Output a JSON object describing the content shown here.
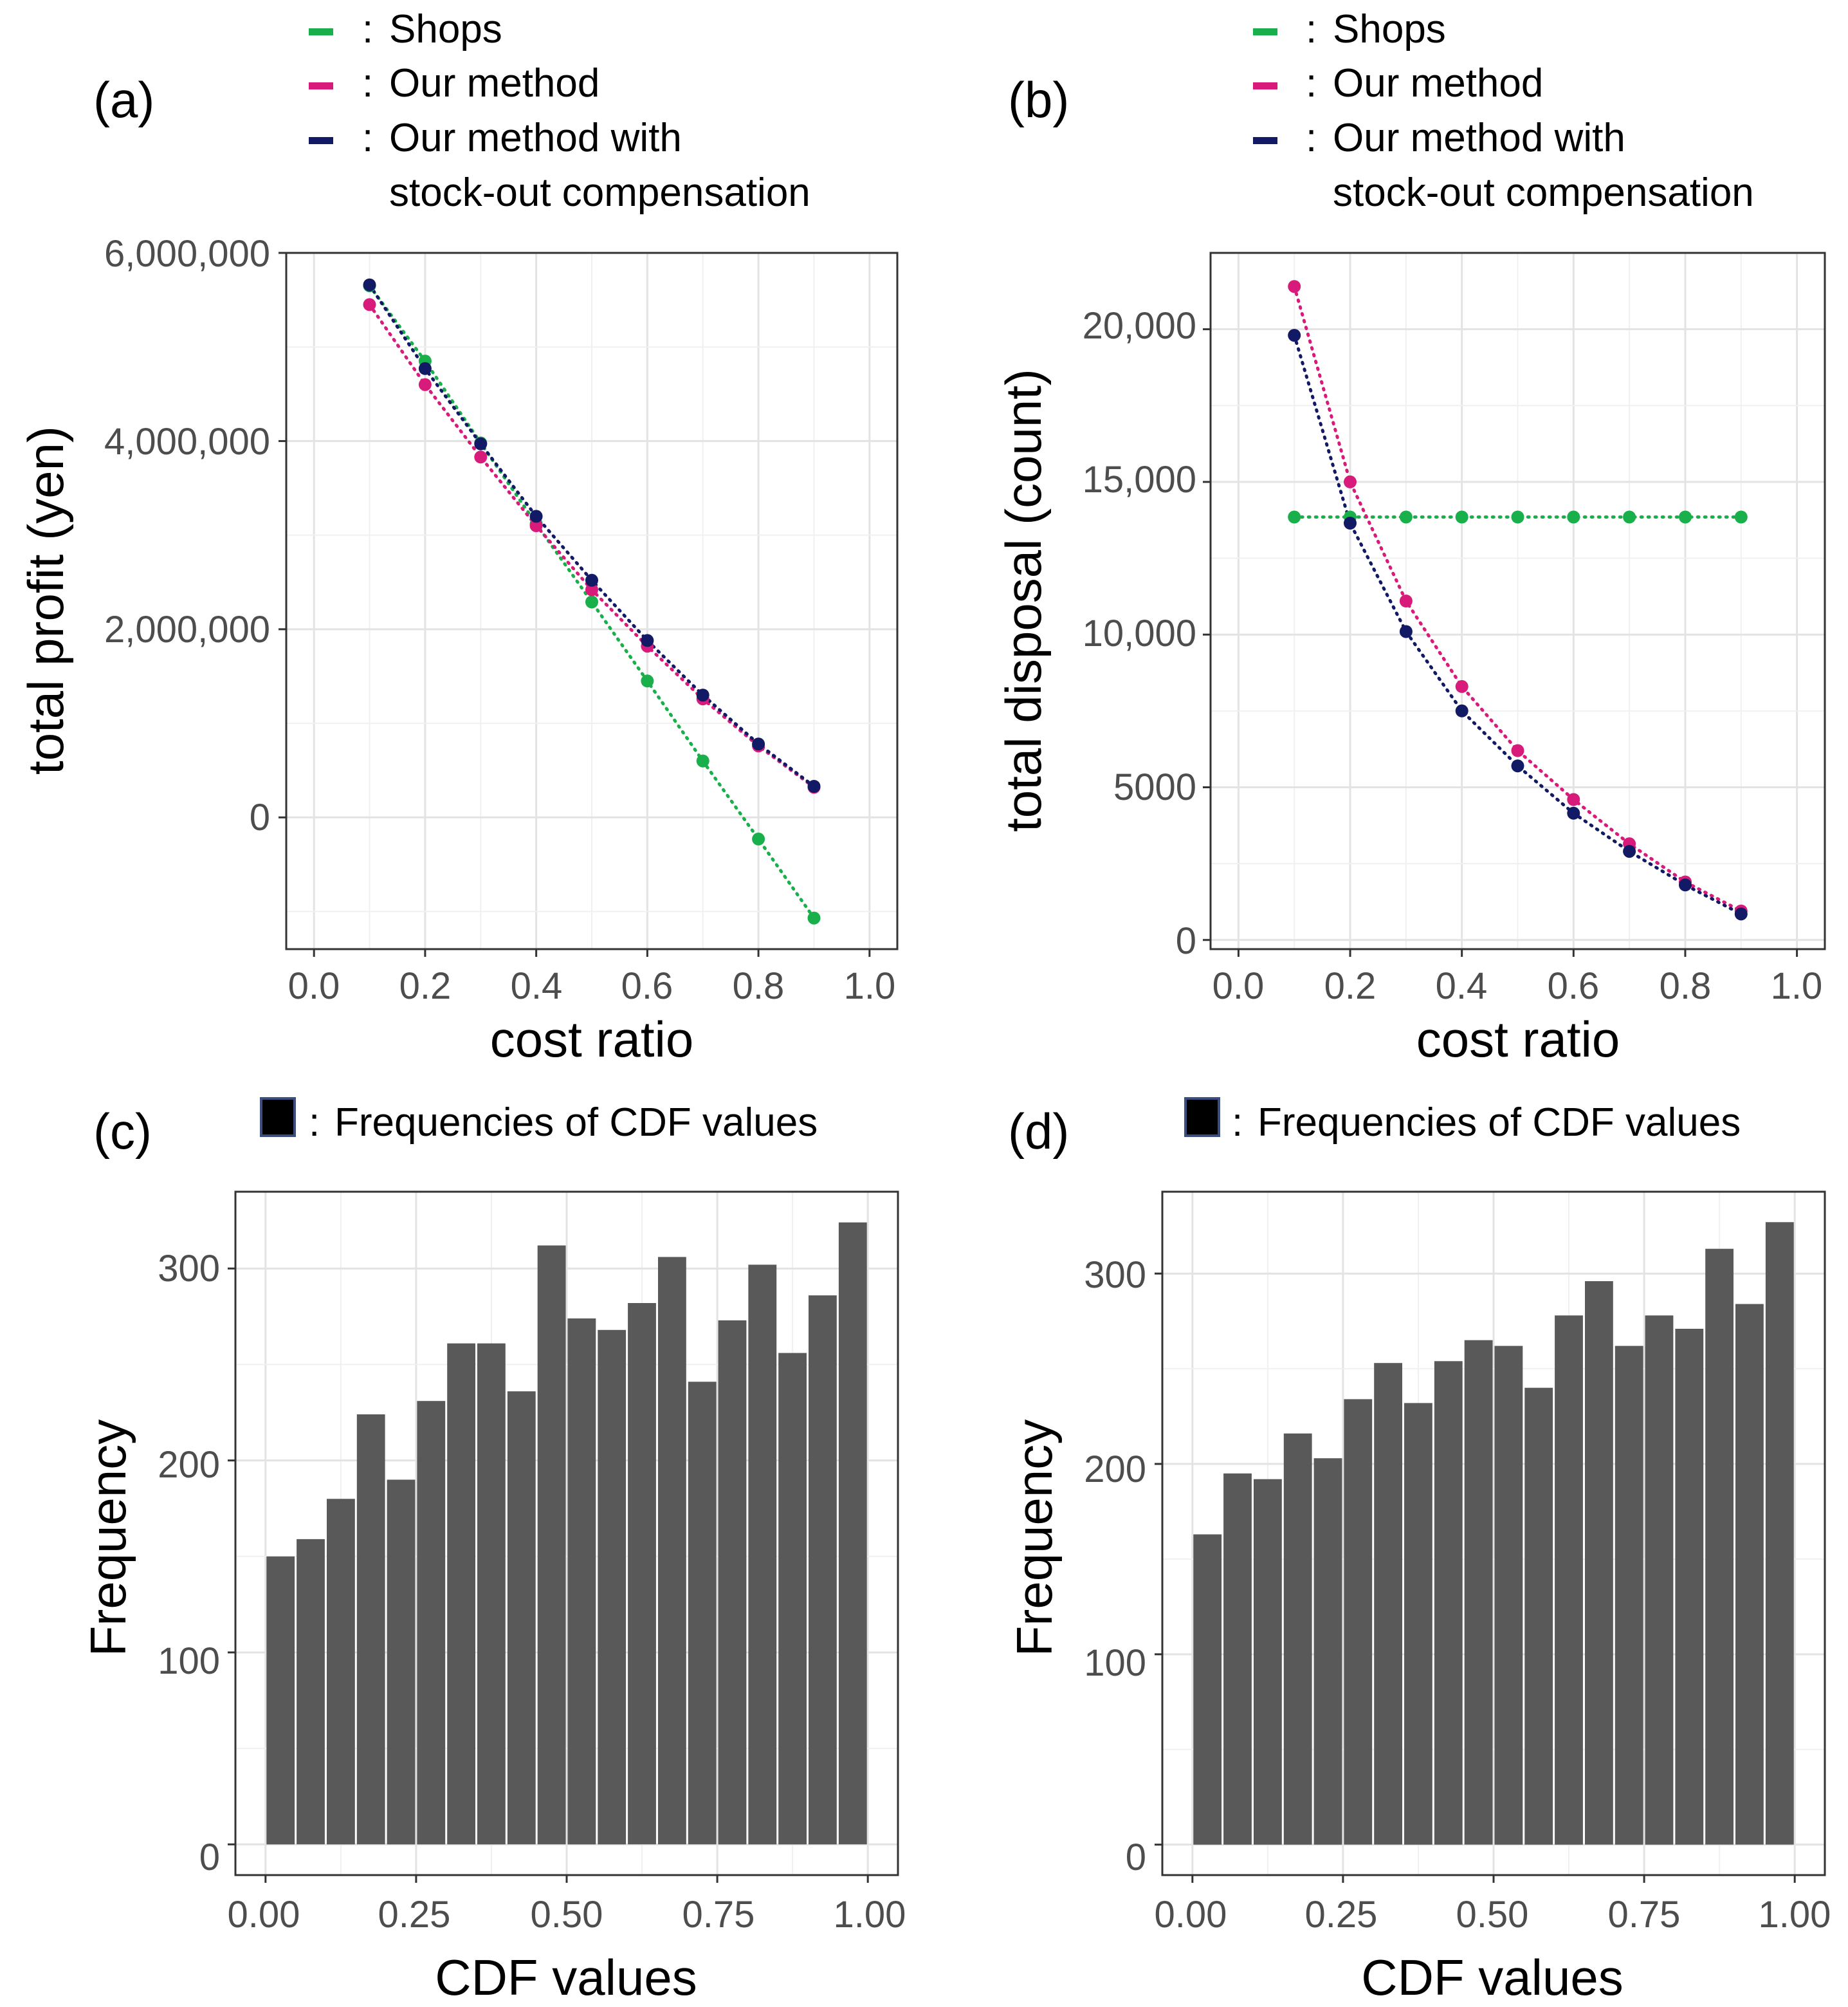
{
  "chart_data": [
    {
      "panel": "(a)",
      "type": "line",
      "xlabel": "cost ratio",
      "ylabel": "total profit (yen)",
      "xlim": [
        -0.05,
        1.05
      ],
      "ylim": [
        -1400000,
        6000000
      ],
      "xticks": [
        0.0,
        0.2,
        0.4,
        0.6,
        0.8,
        1.0
      ],
      "xtick_labels": [
        "0.0",
        "0.2",
        "0.4",
        "0.6",
        "0.8",
        "1.0"
      ],
      "yticks": [
        0,
        2000000,
        4000000,
        6000000
      ],
      "ytick_labels": [
        "0",
        "2,000,000",
        "4,000,000",
        "6,000,000"
      ],
      "legend": [
        "Shops",
        "Our method",
        "Our method with",
        "stock-out compensation"
      ],
      "grid": true,
      "x": [
        0.1,
        0.2,
        0.3,
        0.4,
        0.5,
        0.6,
        0.7,
        0.8,
        0.9
      ],
      "series": [
        {
          "name": "Shops",
          "color": "#19b04b",
          "values": [
            5650000,
            4850000,
            3980000,
            3120000,
            2290000,
            1450000,
            600000,
            -230000,
            -1070000
          ]
        },
        {
          "name": "Our method",
          "color": "#d81b7a",
          "values": [
            5450000,
            4600000,
            3830000,
            3100000,
            2420000,
            1820000,
            1260000,
            760000,
            320000
          ]
        },
        {
          "name": "Our method with stock-out compensation",
          "color": "#121a66",
          "values": [
            5660000,
            4770000,
            3970000,
            3200000,
            2520000,
            1880000,
            1300000,
            780000,
            330000
          ]
        }
      ]
    },
    {
      "panel": "(b)",
      "type": "line",
      "xlabel": "cost ratio",
      "ylabel": "total disposal (count)",
      "xlim": [
        -0.05,
        1.05
      ],
      "ylim": [
        -300,
        22500
      ],
      "xticks": [
        0.0,
        0.2,
        0.4,
        0.6,
        0.8,
        1.0
      ],
      "xtick_labels": [
        "0.0",
        "0.2",
        "0.4",
        "0.6",
        "0.8",
        "1.0"
      ],
      "yticks": [
        0,
        5000,
        10000,
        15000,
        20000
      ],
      "ytick_labels": [
        "0",
        "5000",
        "10,000",
        "15,000",
        "20,000"
      ],
      "legend": [
        "Shops",
        "Our method",
        "Our method with",
        "stock-out compensation"
      ],
      "grid": true,
      "x": [
        0.1,
        0.2,
        0.3,
        0.4,
        0.5,
        0.6,
        0.7,
        0.8,
        0.9
      ],
      "series": [
        {
          "name": "Shops",
          "color": "#19b04b",
          "values": [
            13850,
            13850,
            13850,
            13850,
            13850,
            13850,
            13850,
            13850,
            13850
          ]
        },
        {
          "name": "Our method",
          "color": "#d81b7a",
          "values": [
            21400,
            15000,
            11100,
            8300,
            6200,
            4600,
            3150,
            1900,
            950
          ]
        },
        {
          "name": "Our method with stock-out compensation",
          "color": "#121a66",
          "values": [
            19800,
            13650,
            10100,
            7500,
            5700,
            4150,
            2900,
            1800,
            850
          ]
        }
      ]
    },
    {
      "panel": "(c)",
      "type": "bar",
      "xlabel": "CDF values",
      "ylabel": "Frequency",
      "xlim": [
        -0.05,
        1.05
      ],
      "ylim": [
        -16,
        340
      ],
      "xticks": [
        0.0,
        0.25,
        0.5,
        0.75,
        1.0
      ],
      "xtick_labels": [
        "0.00",
        "0.25",
        "0.50",
        "0.75",
        "1.00"
      ],
      "yticks": [
        0,
        100,
        200,
        300
      ],
      "ytick_labels": [
        "0",
        "100",
        "200",
        "300"
      ],
      "legend": [
        "Frequencies of CDF values"
      ],
      "grid": true,
      "bin_width": 0.05,
      "bin_starts": [
        0.0,
        0.05,
        0.1,
        0.15,
        0.2,
        0.25,
        0.3,
        0.35,
        0.4,
        0.45,
        0.5,
        0.55,
        0.6,
        0.65,
        0.7,
        0.75,
        0.8,
        0.85,
        0.9,
        0.95
      ],
      "values": [
        150,
        159,
        180,
        224,
        190,
        231,
        261,
        261,
        236,
        312,
        274,
        268,
        282,
        306,
        241,
        273,
        302,
        256,
        286,
        324
      ],
      "bar_color": "#595959"
    },
    {
      "panel": "(d)",
      "type": "bar",
      "xlabel": "CDF values",
      "ylabel": "Frequency",
      "xlim": [
        -0.05,
        1.05
      ],
      "ylim": [
        -16,
        343
      ],
      "xticks": [
        0.0,
        0.25,
        0.5,
        0.75,
        1.0
      ],
      "xtick_labels": [
        "0.00",
        "0.25",
        "0.50",
        "0.75",
        "1.00"
      ],
      "yticks": [
        0,
        100,
        200,
        300
      ],
      "ytick_labels": [
        "0",
        "100",
        "200",
        "300"
      ],
      "legend": [
        "Frequencies of CDF values"
      ],
      "grid": true,
      "bin_width": 0.05,
      "bin_starts": [
        0.0,
        0.05,
        0.1,
        0.15,
        0.2,
        0.25,
        0.3,
        0.35,
        0.4,
        0.45,
        0.5,
        0.55,
        0.6,
        0.65,
        0.7,
        0.75,
        0.8,
        0.85,
        0.9,
        0.95
      ],
      "values": [
        163,
        195,
        192,
        216,
        203,
        234,
        253,
        232,
        254,
        265,
        262,
        240,
        278,
        296,
        262,
        278,
        271,
        313,
        284,
        327
      ],
      "bar_color": "#595959"
    }
  ]
}
